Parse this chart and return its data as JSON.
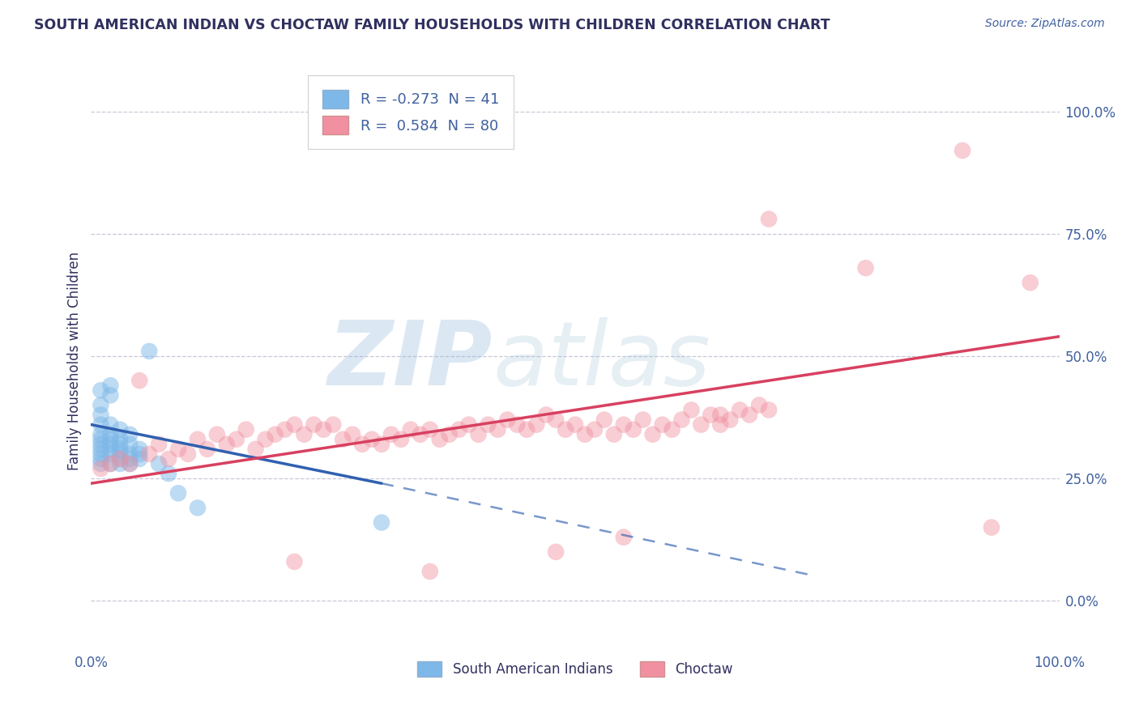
{
  "title": "SOUTH AMERICAN INDIAN VS CHOCTAW FAMILY HOUSEHOLDS WITH CHILDREN CORRELATION CHART",
  "source": "Source: ZipAtlas.com",
  "ylabel": "Family Households with Children",
  "ytick_values": [
    0,
    25,
    50,
    75,
    100
  ],
  "xlim": [
    0,
    100
  ],
  "ylim": [
    -10,
    108
  ],
  "legend_blue_r": "-0.273",
  "legend_blue_n": "41",
  "legend_pink_r": "0.584",
  "legend_pink_n": "80",
  "blue_color": "#7db8e8",
  "pink_color": "#f090a0",
  "blue_line_color": "#3060b0",
  "pink_line_color": "#d84060",
  "watermark_zip": "ZIP",
  "watermark_atlas": "atlas",
  "blue_legend_label": "South American Indians",
  "pink_legend_label": "Choctaw",
  "blue_points": [
    [
      1,
      43
    ],
    [
      1,
      40
    ],
    [
      1,
      38
    ],
    [
      1,
      36
    ],
    [
      1,
      34
    ],
    [
      1,
      33
    ],
    [
      1,
      32
    ],
    [
      1,
      31
    ],
    [
      1,
      30
    ],
    [
      1,
      29
    ],
    [
      1,
      28
    ],
    [
      2,
      44
    ],
    [
      2,
      42
    ],
    [
      2,
      36
    ],
    [
      2,
      34
    ],
    [
      2,
      33
    ],
    [
      2,
      32
    ],
    [
      2,
      31
    ],
    [
      2,
      30
    ],
    [
      2,
      28
    ],
    [
      3,
      35
    ],
    [
      3,
      33
    ],
    [
      3,
      32
    ],
    [
      3,
      31
    ],
    [
      3,
      30
    ],
    [
      3,
      29
    ],
    [
      3,
      28
    ],
    [
      4,
      34
    ],
    [
      4,
      32
    ],
    [
      4,
      30
    ],
    [
      4,
      29
    ],
    [
      4,
      28
    ],
    [
      5,
      31
    ],
    [
      5,
      30
    ],
    [
      5,
      29
    ],
    [
      6,
      51
    ],
    [
      7,
      28
    ],
    [
      8,
      26
    ],
    [
      9,
      22
    ],
    [
      11,
      19
    ],
    [
      30,
      16
    ]
  ],
  "pink_points": [
    [
      1,
      27
    ],
    [
      2,
      28
    ],
    [
      3,
      29
    ],
    [
      4,
      28
    ],
    [
      5,
      45
    ],
    [
      6,
      30
    ],
    [
      7,
      32
    ],
    [
      8,
      29
    ],
    [
      9,
      31
    ],
    [
      10,
      30
    ],
    [
      11,
      33
    ],
    [
      12,
      31
    ],
    [
      13,
      34
    ],
    [
      14,
      32
    ],
    [
      15,
      33
    ],
    [
      16,
      35
    ],
    [
      17,
      31
    ],
    [
      18,
      33
    ],
    [
      19,
      34
    ],
    [
      20,
      35
    ],
    [
      21,
      36
    ],
    [
      22,
      34
    ],
    [
      23,
      36
    ],
    [
      24,
      35
    ],
    [
      25,
      36
    ],
    [
      26,
      33
    ],
    [
      27,
      34
    ],
    [
      28,
      32
    ],
    [
      29,
      33
    ],
    [
      30,
      32
    ],
    [
      31,
      34
    ],
    [
      32,
      33
    ],
    [
      33,
      35
    ],
    [
      34,
      34
    ],
    [
      35,
      35
    ],
    [
      36,
      33
    ],
    [
      37,
      34
    ],
    [
      38,
      35
    ],
    [
      39,
      36
    ],
    [
      40,
      34
    ],
    [
      41,
      36
    ],
    [
      42,
      35
    ],
    [
      43,
      37
    ],
    [
      44,
      36
    ],
    [
      45,
      35
    ],
    [
      46,
      36
    ],
    [
      47,
      38
    ],
    [
      48,
      37
    ],
    [
      49,
      35
    ],
    [
      50,
      36
    ],
    [
      51,
      34
    ],
    [
      52,
      35
    ],
    [
      53,
      37
    ],
    [
      54,
      34
    ],
    [
      55,
      36
    ],
    [
      56,
      35
    ],
    [
      57,
      37
    ],
    [
      58,
      34
    ],
    [
      59,
      36
    ],
    [
      60,
      35
    ],
    [
      61,
      37
    ],
    [
      62,
      39
    ],
    [
      63,
      36
    ],
    [
      64,
      38
    ],
    [
      65,
      36
    ],
    [
      66,
      37
    ],
    [
      67,
      39
    ],
    [
      68,
      38
    ],
    [
      69,
      40
    ],
    [
      70,
      39
    ],
    [
      21,
      8
    ],
    [
      35,
      6
    ],
    [
      48,
      10
    ],
    [
      55,
      13
    ],
    [
      65,
      38
    ],
    [
      70,
      78
    ],
    [
      80,
      68
    ],
    [
      90,
      92
    ],
    [
      93,
      15
    ],
    [
      97,
      65
    ]
  ],
  "blue_line_start_x": 0,
  "blue_line_start_y": 36,
  "blue_line_solid_end_x": 30,
  "blue_line_solid_end_y": 24,
  "blue_line_end_x": 75,
  "blue_line_end_y": 5,
  "pink_line_start_x": 0,
  "pink_line_start_y": 24,
  "pink_line_end_x": 100,
  "pink_line_end_y": 54,
  "grid_color": "#c8c8d8",
  "background_color": "#ffffff",
  "title_color": "#303060",
  "axis_label_color": "#4060a0"
}
